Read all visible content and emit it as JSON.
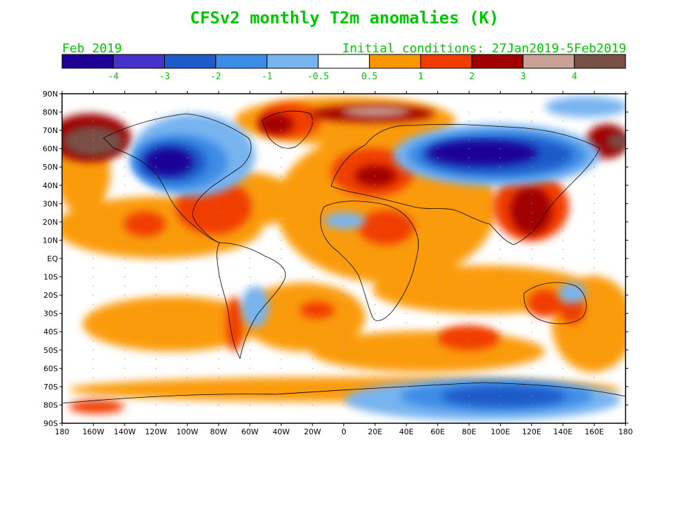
{
  "title": "CFSv2 monthly T2m anomalies (K)",
  "month": "Feb 2019",
  "initial_conditions": "Initial conditions: 27Jan2019-5Feb2019",
  "text_color": "#00c800",
  "colorbar": {
    "colors": [
      "#1e0096",
      "#4632c8",
      "#1e5ac8",
      "#3c8ce6",
      "#78b4f0",
      "#ffffff",
      "#fa9600",
      "#f03c00",
      "#a00000",
      "#c8a096",
      "#785046"
    ],
    "labels": [
      "-4",
      "-3",
      "-2",
      "-1",
      "-0.5",
      "0.5",
      "1",
      "2",
      "3",
      "4"
    ]
  },
  "axes": {
    "lat_labels": [
      "90N",
      "80N",
      "70N",
      "60N",
      "50N",
      "40N",
      "30N",
      "20N",
      "10N",
      "EQ",
      "10S",
      "20S",
      "30S",
      "40S",
      "50S",
      "60S",
      "70S",
      "80S",
      "90S"
    ],
    "lon_labels": [
      "180",
      "160W",
      "140W",
      "120W",
      "100W",
      "80W",
      "60W",
      "40W",
      "20W",
      "0",
      "20E",
      "40E",
      "60E",
      "80E",
      "100E",
      "120E",
      "140E",
      "160E",
      "180"
    ]
  },
  "anomaly_regions": [
    {
      "name": "north-america-cold",
      "level": -4,
      "lon": -105,
      "lat": 52,
      "rx": 20,
      "ry": 12
    },
    {
      "name": "siberia-cold",
      "level": -4,
      "lon": 90,
      "lat": 58,
      "rx": 32,
      "ry": 10
    },
    {
      "name": "antarctica-cold",
      "level": -2,
      "lon": 95,
      "lat": -74,
      "rx": 30,
      "ry": 6
    },
    {
      "name": "alaska-warm",
      "level": 4,
      "lon": -165,
      "lat": 64,
      "rx": 14,
      "ry": 8
    },
    {
      "name": "arctic-warm",
      "level": 3,
      "lon": 15,
      "lat": 78,
      "rx": 40,
      "ry": 5
    },
    {
      "name": "middle-east-warm",
      "level": 2,
      "lon": 35,
      "lat": 38,
      "rx": 20,
      "ry": 12
    },
    {
      "name": "china-warm",
      "level": 3,
      "lon": 110,
      "lat": 25,
      "rx": 12,
      "ry": 14
    },
    {
      "name": "north-africa-warm",
      "level": 2,
      "lon": 30,
      "lat": 18,
      "rx": 14,
      "ry": 8
    },
    {
      "name": "australia-warm",
      "level": 2,
      "lon": 128,
      "lat": -28,
      "rx": 10,
      "ry": 7
    }
  ]
}
